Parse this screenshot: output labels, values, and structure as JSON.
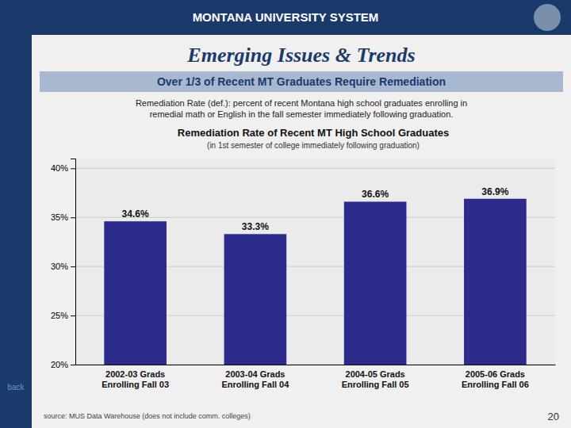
{
  "header": "MONTANA UNIVERSITY SYSTEM",
  "title": "Emerging Issues & Trends",
  "subtitle": "Over 1/3 of Recent MT Graduates Require Remediation",
  "body": [
    "Remediation Rate (def.): percent of recent Montana high school graduates enrolling in",
    "  remedial math or English in the fall semester immediately following graduation."
  ],
  "source": "source:  MUS Data Warehouse (does not include comm. colleges)",
  "back": "back",
  "page": "20",
  "chart_data": {
    "type": "bar",
    "title": "Remediation Rate of Recent MT High School Graduates",
    "subtitle": "(in 1st semester of college immediately following graduation)",
    "categories": [
      "2002-03 Grads\nEnrolling Fall 03",
      "2003-04 Grads\nEnrolling Fall 04",
      "2004-05 Grads\nEnrolling Fall 05",
      "2005-06 Grads\nEnrolling Fall 06"
    ],
    "values": [
      34.6,
      33.3,
      36.6,
      36.9
    ],
    "value_labels": [
      "34.6%",
      "33.3%",
      "36.6%",
      "36.9%"
    ],
    "data_labels": true,
    "color": "#2b2b8c",
    "ylim": [
      20,
      41
    ],
    "yticks": [
      {
        "value": 20,
        "label": "20%"
      },
      {
        "value": 25,
        "label": "25%"
      },
      {
        "value": 30,
        "label": "30%"
      },
      {
        "value": 35,
        "label": "35%"
      },
      {
        "value": 40,
        "label": "40%"
      }
    ],
    "grid": true
  }
}
